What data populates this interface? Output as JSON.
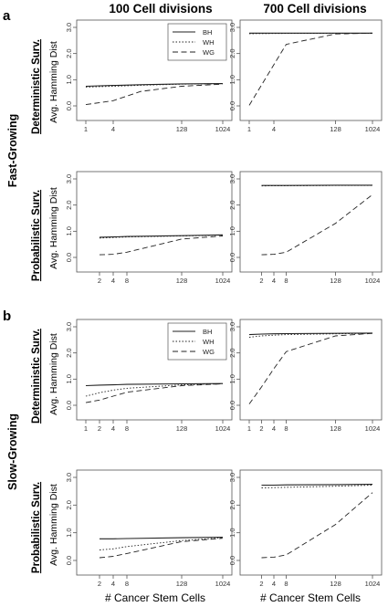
{
  "labels": {
    "col_left": "100 Cell divisions",
    "col_right": "700 Cell divisions",
    "section_a": "a",
    "section_b": "b",
    "group_a": "Fast-Growing",
    "group_b": "Slow-Growing",
    "surv_det": "Deterministic Surv.",
    "surv_prob": "Probabilistic Surv.",
    "ylabel": "Avg. Hamming Dist",
    "xlabel": "#  Cancer Stem Cells"
  },
  "colors": {
    "line": "#222222",
    "axis": "#555555"
  },
  "chart_data": [
    {
      "id": "fast-det-100",
      "type": "line",
      "x_scale": "log2",
      "xticks": [
        1,
        4,
        128,
        1024
      ],
      "yticks": [
        "0.0",
        "1.0",
        "2.0",
        "3.0"
      ],
      "ylim": [
        0,
        3
      ],
      "legend": [
        "BH",
        "WH",
        "WG"
      ],
      "x": [
        1,
        4,
        16,
        128,
        1024
      ],
      "series": [
        {
          "name": "BH",
          "dash": "solid",
          "values": [
            0.75,
            0.78,
            0.81,
            0.84,
            0.85
          ]
        },
        {
          "name": "WH",
          "dash": "dotted",
          "values": [
            0.72,
            0.75,
            0.79,
            0.83,
            0.85
          ]
        },
        {
          "name": "WG",
          "dash": "dashed",
          "values": [
            0.05,
            0.2,
            0.55,
            0.75,
            0.83
          ]
        }
      ]
    },
    {
      "id": "fast-det-700",
      "type": "line",
      "x_scale": "log2",
      "xticks": [
        1,
        4,
        128,
        1024
      ],
      "yticks": [
        "0.0",
        "1.0",
        "2.0",
        "3.0"
      ],
      "ylim": [
        0,
        3
      ],
      "legend": [],
      "x": [
        1,
        8,
        128,
        1024
      ],
      "series": [
        {
          "name": "BH",
          "dash": "solid",
          "values": [
            2.78,
            2.78,
            2.78,
            2.78
          ]
        },
        {
          "name": "WH",
          "dash": "dotted",
          "values": [
            2.76,
            2.77,
            2.77,
            2.77
          ]
        },
        {
          "name": "WG",
          "dash": "dashed",
          "values": [
            0.02,
            2.35,
            2.75,
            2.78
          ]
        }
      ]
    },
    {
      "id": "fast-prob-100",
      "type": "line",
      "x_scale": "log2",
      "xticks": [
        2,
        4,
        8,
        128,
        1024
      ],
      "yticks": [
        "0.0",
        "1.0",
        "2.0",
        "3.0"
      ],
      "ylim": [
        0,
        3
      ],
      "legend": [],
      "x": [
        2,
        4,
        8,
        128,
        1024
      ],
      "series": [
        {
          "name": "BH",
          "dash": "solid",
          "values": [
            0.77,
            0.78,
            0.8,
            0.83,
            0.86
          ]
        },
        {
          "name": "WH",
          "dash": "dotted",
          "values": [
            0.74,
            0.76,
            0.78,
            0.82,
            0.85
          ]
        },
        {
          "name": "WG",
          "dash": "dashed",
          "values": [
            0.1,
            0.12,
            0.2,
            0.7,
            0.82
          ]
        }
      ]
    },
    {
      "id": "fast-prob-700",
      "type": "line",
      "x_scale": "log2",
      "xticks": [
        2,
        4,
        8,
        128,
        1024
      ],
      "yticks": [
        "0.0",
        "1.0",
        "2.0",
        "3.0"
      ],
      "ylim": [
        0,
        3
      ],
      "legend": [],
      "x": [
        2,
        4,
        8,
        128,
        1024
      ],
      "series": [
        {
          "name": "BH",
          "dash": "solid",
          "values": [
            2.75,
            2.75,
            2.75,
            2.76,
            2.76
          ]
        },
        {
          "name": "WH",
          "dash": "dotted",
          "values": [
            2.73,
            2.74,
            2.74,
            2.75,
            2.75
          ]
        },
        {
          "name": "WG",
          "dash": "dashed",
          "values": [
            0.1,
            0.12,
            0.2,
            1.3,
            2.4
          ]
        }
      ]
    },
    {
      "id": "slow-det-100",
      "type": "line",
      "x_scale": "log2",
      "xticks": [
        1,
        2,
        4,
        8,
        128,
        1024
      ],
      "yticks": [
        "0.0",
        "1.0",
        "2.0",
        "3.0"
      ],
      "ylim": [
        0,
        3
      ],
      "legend": [
        "BH",
        "WH",
        "WG"
      ],
      "x": [
        1,
        2,
        4,
        8,
        128,
        1024
      ],
      "series": [
        {
          "name": "BH",
          "dash": "solid",
          "values": [
            0.75,
            0.77,
            0.78,
            0.8,
            0.82,
            0.83
          ]
        },
        {
          "name": "WH",
          "dash": "dotted",
          "values": [
            0.35,
            0.48,
            0.58,
            0.65,
            0.78,
            0.82
          ]
        },
        {
          "name": "WG",
          "dash": "dashed",
          "values": [
            0.1,
            0.2,
            0.35,
            0.5,
            0.75,
            0.82
          ]
        }
      ]
    },
    {
      "id": "slow-det-700",
      "type": "line",
      "x_scale": "log2",
      "xticks": [
        1,
        2,
        4,
        8,
        128,
        1024
      ],
      "yticks": [
        "0.0",
        "1.0",
        "2.0",
        "3.0"
      ],
      "ylim": [
        0,
        3
      ],
      "legend": [],
      "x": [
        1,
        2,
        4,
        8,
        128,
        1024
      ],
      "series": [
        {
          "name": "BH",
          "dash": "solid",
          "values": [
            2.7,
            2.72,
            2.73,
            2.74,
            2.75,
            2.76
          ]
        },
        {
          "name": "WH",
          "dash": "dotted",
          "values": [
            2.6,
            2.65,
            2.68,
            2.7,
            2.73,
            2.75
          ]
        },
        {
          "name": "WG",
          "dash": "dashed",
          "values": [
            0.05,
            0.7,
            1.4,
            2.05,
            2.65,
            2.75
          ]
        }
      ]
    },
    {
      "id": "slow-prob-100",
      "type": "line",
      "x_scale": "log2",
      "xticks": [
        2,
        4,
        8,
        128,
        1024
      ],
      "yticks": [
        "0.0",
        "1.0",
        "2.0",
        "3.0"
      ],
      "ylim": [
        0,
        3
      ],
      "legend": [],
      "x": [
        2,
        4,
        8,
        128,
        1024
      ],
      "series": [
        {
          "name": "BH",
          "dash": "solid",
          "values": [
            0.78,
            0.78,
            0.79,
            0.82,
            0.84
          ]
        },
        {
          "name": "WH",
          "dash": "dotted",
          "values": [
            0.38,
            0.42,
            0.5,
            0.72,
            0.82
          ]
        },
        {
          "name": "WG",
          "dash": "dashed",
          "values": [
            0.1,
            0.15,
            0.25,
            0.68,
            0.8
          ]
        }
      ]
    },
    {
      "id": "slow-prob-700",
      "type": "line",
      "x_scale": "log2",
      "xticks": [
        2,
        4,
        8,
        128,
        1024
      ],
      "yticks": [
        "0.0",
        "1.0",
        "2.0",
        "3.0"
      ],
      "ylim": [
        0,
        3
      ],
      "legend": [],
      "x": [
        2,
        4,
        8,
        128,
        1024
      ],
      "series": [
        {
          "name": "BH",
          "dash": "solid",
          "values": [
            2.72,
            2.72,
            2.73,
            2.74,
            2.75
          ]
        },
        {
          "name": "WH",
          "dash": "dotted",
          "values": [
            2.62,
            2.63,
            2.64,
            2.68,
            2.72
          ]
        },
        {
          "name": "WG",
          "dash": "dashed",
          "values": [
            0.1,
            0.12,
            0.2,
            1.3,
            2.45
          ]
        }
      ]
    }
  ]
}
